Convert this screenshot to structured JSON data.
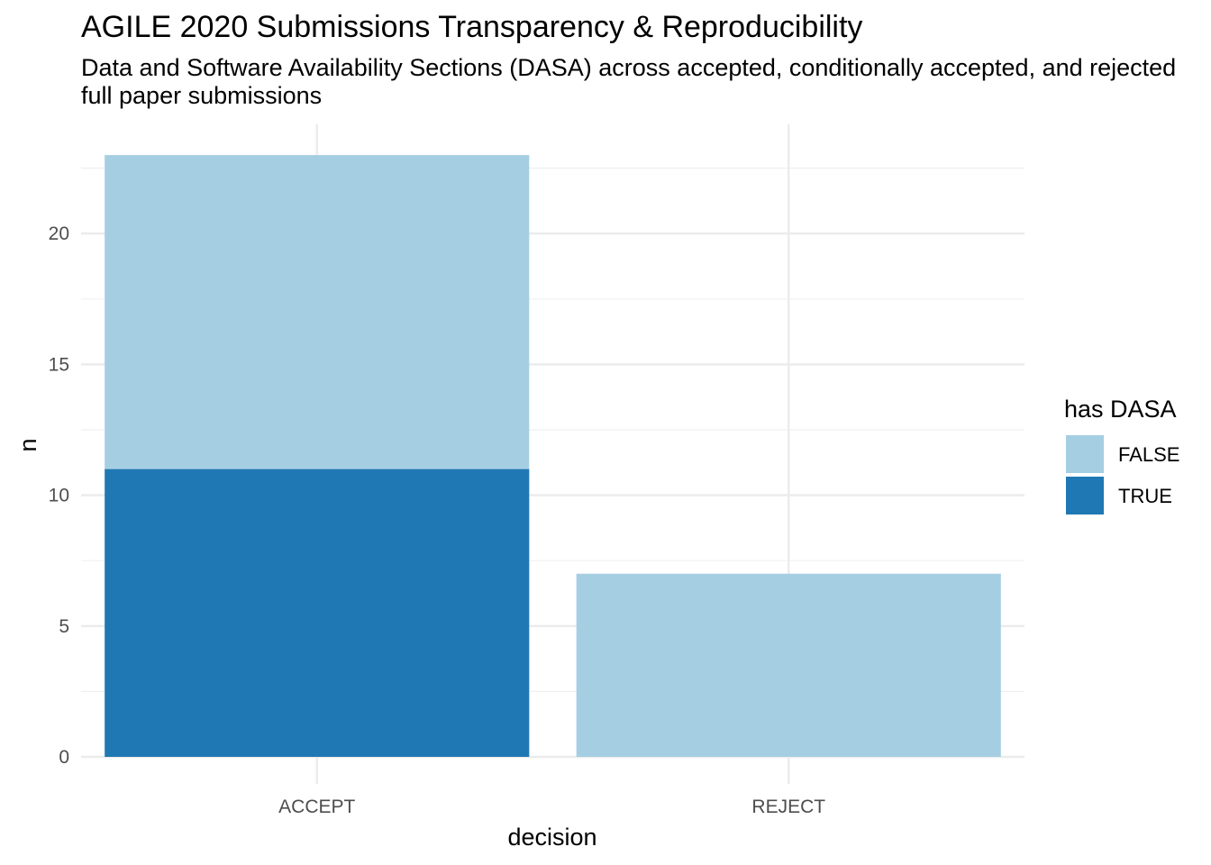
{
  "chart_data": {
    "type": "bar",
    "stacked": true,
    "title": "AGILE 2020 Submissions Transparency & Reproducibility",
    "subtitle": "Data and Software Availability Sections (DASA) across accepted, conditionally accepted, and rejected full paper submissions",
    "xlabel": "decision",
    "ylabel": "n",
    "categories": [
      "ACCEPT",
      "REJECT"
    ],
    "series": [
      {
        "name": "TRUE",
        "color": "#1f78b4",
        "values": [
          11,
          0
        ]
      },
      {
        "name": "FALSE",
        "color": "#a6cee3",
        "values": [
          12,
          7
        ]
      }
    ],
    "yticks": [
      "0",
      "5",
      "10",
      "15",
      "20"
    ],
    "ylim": [
      0,
      23
    ],
    "grid": true,
    "legend": {
      "title": "has DASA",
      "position": "right",
      "entries": [
        {
          "label": "FALSE",
          "color": "#a6cee3"
        },
        {
          "label": "TRUE",
          "color": "#1f78b4"
        }
      ]
    }
  }
}
